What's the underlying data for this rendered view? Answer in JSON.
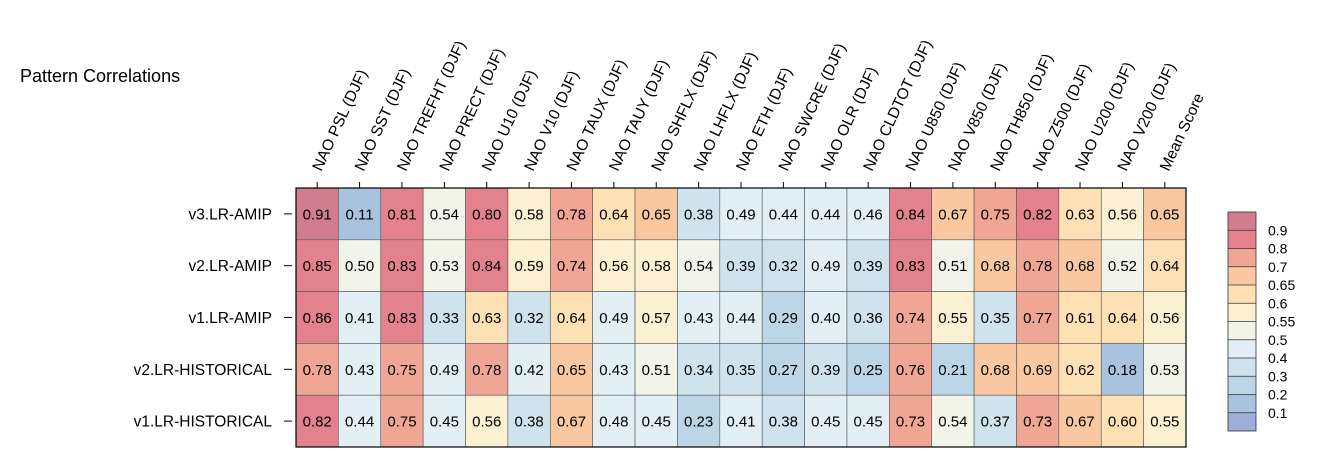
{
  "chart_data": {
    "type": "heatmap",
    "title": "Pattern Correlations",
    "columns": [
      "NAO PSL (DJF)",
      "NAO SST (DJF)",
      "NAO TREFHT (DJF)",
      "NAO PRECT (DJF)",
      "NAO U10 (DJF)",
      "NAO V10 (DJF)",
      "NAO TAUX (DJF)",
      "NAO TAUY (DJF)",
      "NAO SHFLX (DJF)",
      "NAO LHFLX (DJF)",
      "NAO ETH (DJF)",
      "NAO SWCRE (DJF)",
      "NAO OLR (DJF)",
      "NAO CLDTOT (DJF)",
      "NAO U850 (DJF)",
      "NAO V850 (DJF)",
      "NAO TH850 (DJF)",
      "NAO Z500 (DJF)",
      "NAO U200 (DJF)",
      "NAO V200 (DJF)",
      "Mean Score"
    ],
    "rows": [
      "v3.LR-AMIP",
      "v2.LR-AMIP",
      "v1.LR-AMIP",
      "v2.LR-HISTORICAL",
      "v1.LR-HISTORICAL"
    ],
    "values": [
      [
        0.91,
        0.11,
        0.81,
        0.54,
        0.8,
        0.58,
        0.78,
        0.64,
        0.65,
        0.38,
        0.49,
        0.44,
        0.44,
        0.46,
        0.84,
        0.67,
        0.75,
        0.82,
        0.63,
        0.56,
        0.65
      ],
      [
        0.85,
        0.5,
        0.83,
        0.53,
        0.84,
        0.59,
        0.74,
        0.56,
        0.58,
        0.54,
        0.39,
        0.32,
        0.49,
        0.39,
        0.83,
        0.51,
        0.68,
        0.78,
        0.68,
        0.52,
        0.64
      ],
      [
        0.86,
        0.41,
        0.83,
        0.33,
        0.63,
        0.32,
        0.64,
        0.49,
        0.57,
        0.43,
        0.44,
        0.29,
        0.4,
        0.36,
        0.74,
        0.55,
        0.35,
        0.77,
        0.61,
        0.64,
        0.56
      ],
      [
        0.78,
        0.43,
        0.75,
        0.49,
        0.78,
        0.42,
        0.65,
        0.43,
        0.51,
        0.34,
        0.35,
        0.27,
        0.39,
        0.25,
        0.76,
        0.21,
        0.68,
        0.69,
        0.62,
        0.18,
        0.53
      ],
      [
        0.82,
        0.44,
        0.75,
        0.45,
        0.56,
        0.38,
        0.67,
        0.48,
        0.45,
        0.23,
        0.41,
        0.38,
        0.45,
        0.45,
        0.73,
        0.54,
        0.37,
        0.73,
        0.67,
        0.6,
        0.55
      ]
    ],
    "colorbar": {
      "levels": [
        0.1,
        0.2,
        0.3,
        0.4,
        0.5,
        0.55,
        0.6,
        0.65,
        0.7,
        0.8,
        0.9
      ],
      "tick_labels": [
        "0.1",
        "0.2",
        "0.3",
        "0.4",
        "0.5",
        "0.55",
        "0.6",
        "0.65",
        "0.7",
        "0.8",
        "0.9"
      ],
      "colors": [
        "#9dafd6",
        "#a9c2dd",
        "#bcd6e7",
        "#cfe3ee",
        "#e2eff5",
        "#f2f3e9",
        "#fcf0d2",
        "#fde1b5",
        "#f9c8a0",
        "#f0a694",
        "#e3828c",
        "#d27c8f"
      ],
      "placement": "right"
    }
  }
}
